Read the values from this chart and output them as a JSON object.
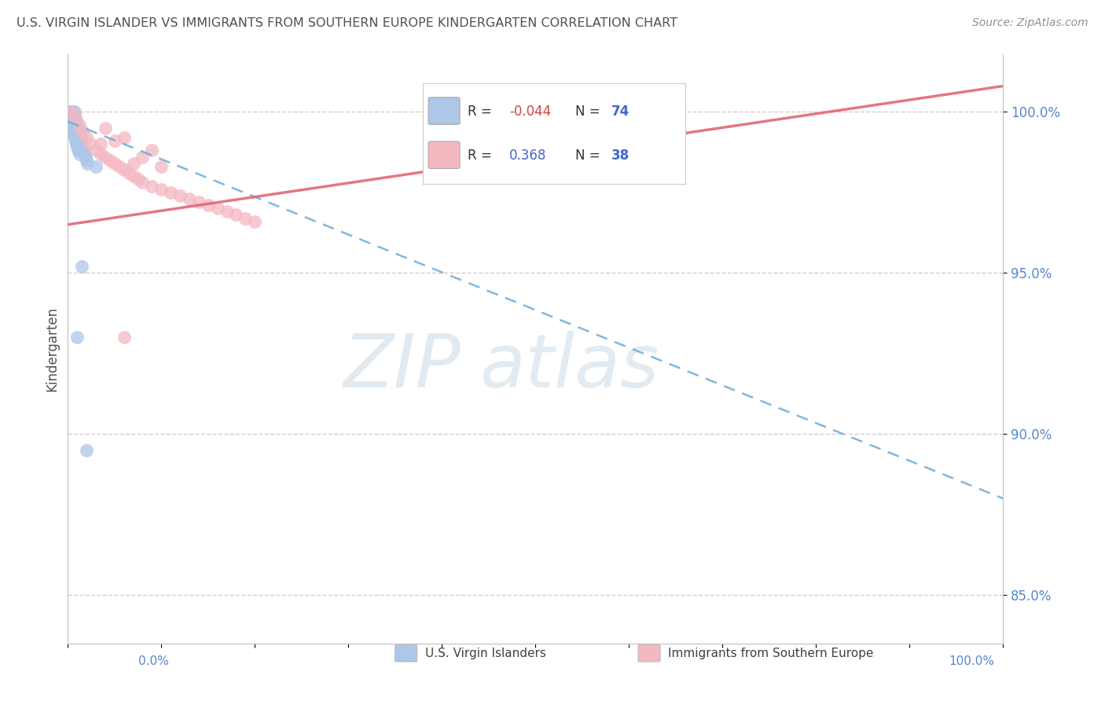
{
  "title": "U.S. VIRGIN ISLANDER VS IMMIGRANTS FROM SOUTHERN EUROPE KINDERGARTEN CORRELATION CHART",
  "source": "Source: ZipAtlas.com",
  "ylabel": "Kindergarten",
  "y_ticks": [
    85.0,
    90.0,
    95.0,
    100.0
  ],
  "xlim": [
    0.0,
    100.0
  ],
  "ylim": [
    83.5,
    101.8
  ],
  "legend_entries": [
    {
      "color": "#aec6e8",
      "R": -0.044,
      "N": 74,
      "label": "U.S. Virgin Islanders"
    },
    {
      "color": "#f4b8c1",
      "R": 0.368,
      "N": 38,
      "label": "Immigrants from Southern Europe"
    }
  ],
  "blue_scatter_x": [
    0.2,
    0.3,
    0.4,
    0.5,
    0.6,
    0.7,
    0.8,
    0.9,
    1.0,
    1.1,
    1.2,
    1.3,
    1.4,
    1.5,
    1.6,
    1.7,
    1.8,
    1.9,
    2.0,
    2.1,
    0.3,
    0.4,
    0.5,
    0.6,
    0.7,
    0.8,
    0.9,
    1.0,
    1.1,
    1.2,
    0.2,
    0.3,
    0.4,
    0.5,
    0.6,
    0.7,
    0.8,
    0.9,
    1.0,
    1.1,
    0.3,
    0.4,
    0.5,
    0.6,
    0.7,
    0.8,
    0.9,
    1.0,
    1.1,
    1.2,
    0.2,
    0.3,
    0.4,
    0.5,
    0.6,
    0.7,
    0.8,
    0.9,
    1.0,
    1.1,
    0.3,
    0.4,
    0.5,
    0.6,
    0.7,
    0.8,
    0.9,
    1.0,
    1.1,
    1.2,
    1.0,
    2.0,
    1.5,
    3.0
  ],
  "blue_scatter_y": [
    100.0,
    100.0,
    100.0,
    100.0,
    100.0,
    100.0,
    99.8,
    99.7,
    99.6,
    99.5,
    99.4,
    99.3,
    99.2,
    99.1,
    98.9,
    98.8,
    98.7,
    98.6,
    98.5,
    98.4,
    99.8,
    99.7,
    99.6,
    99.5,
    99.4,
    99.3,
    99.2,
    99.1,
    99.0,
    98.9,
    99.9,
    99.8,
    99.7,
    99.6,
    99.5,
    99.4,
    99.3,
    99.2,
    99.1,
    99.0,
    99.7,
    99.6,
    99.5,
    99.4,
    99.3,
    99.2,
    99.1,
    99.0,
    98.9,
    98.8,
    99.8,
    99.7,
    99.6,
    99.5,
    99.4,
    99.3,
    99.2,
    99.1,
    99.0,
    98.9,
    99.6,
    99.5,
    99.4,
    99.3,
    99.2,
    99.1,
    99.0,
    98.9,
    98.8,
    98.7,
    93.0,
    89.5,
    95.2,
    98.3
  ],
  "pink_scatter_x": [
    0.4,
    0.8,
    1.2,
    1.6,
    2.0,
    2.4,
    3.0,
    3.5,
    4.0,
    4.5,
    5.0,
    5.5,
    6.0,
    6.5,
    7.0,
    7.5,
    8.0,
    9.0,
    10.0,
    11.0,
    12.0,
    13.0,
    14.0,
    15.0,
    16.0,
    17.0,
    18.0,
    19.0,
    20.0,
    3.5,
    4.0,
    5.0,
    6.0,
    7.0,
    8.0,
    9.0,
    10.0,
    6.0
  ],
  "pink_scatter_y": [
    100.0,
    99.8,
    99.6,
    99.4,
    99.2,
    99.0,
    98.8,
    98.7,
    98.6,
    98.5,
    98.4,
    98.3,
    98.2,
    98.1,
    98.0,
    97.9,
    97.8,
    97.7,
    97.6,
    97.5,
    97.4,
    97.3,
    97.2,
    97.1,
    97.0,
    96.9,
    96.8,
    96.7,
    96.6,
    99.0,
    99.5,
    99.1,
    99.2,
    98.4,
    98.6,
    98.8,
    98.3,
    93.0
  ],
  "blue_line_x0": 0.0,
  "blue_line_x1": 100.0,
  "blue_line_y0": 99.7,
  "blue_line_y1": 88.0,
  "pink_line_x0": 0.0,
  "pink_line_x1": 100.0,
  "pink_line_y0": 96.5,
  "pink_line_y1": 100.8,
  "watermark_zip": "ZIP",
  "watermark_atlas": "atlas",
  "background_color": "#ffffff",
  "grid_color": "#ddc8c8",
  "blue_color": "#aec6e8",
  "pink_color": "#f4b8c1",
  "blue_line_color": "#6aacd8",
  "pink_line_color": "#e06878",
  "title_color": "#505050",
  "source_color": "#909090",
  "tick_color": "#5588cc",
  "R_negative_color": "#cc4444",
  "R_positive_color": "#4466cc",
  "N_color": "#4466cc",
  "bottom_legend_items": [
    {
      "color": "#aec6e8",
      "label": "U.S. Virgin Islanders"
    },
    {
      "color": "#f4b8c1",
      "label": "Immigrants from Southern Europe"
    }
  ]
}
